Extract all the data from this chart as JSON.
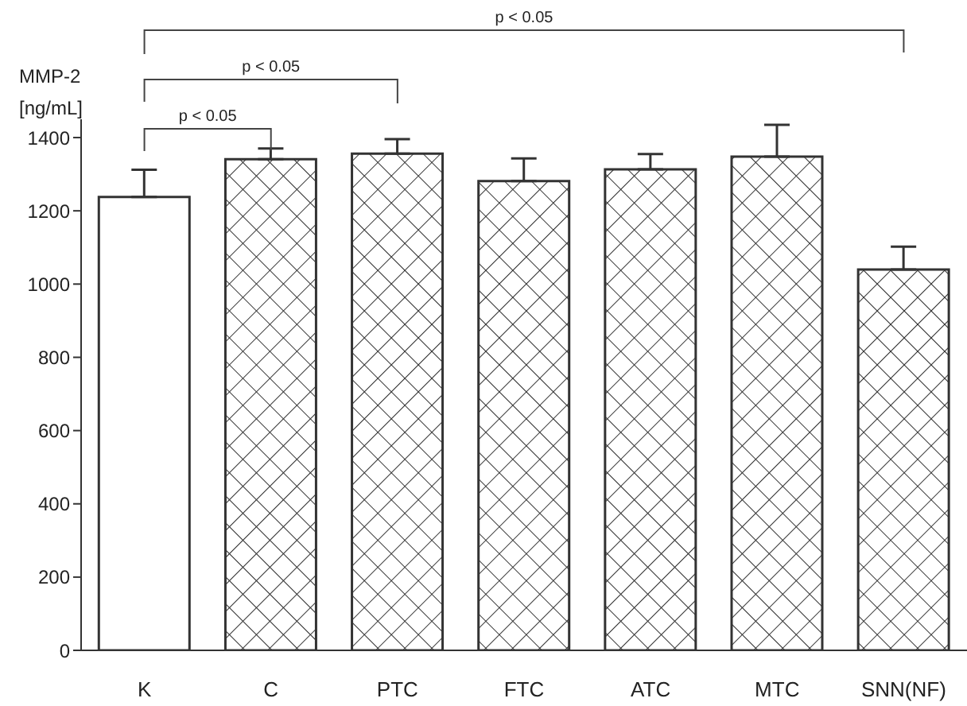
{
  "chart_data": {
    "type": "bar",
    "ylabel": "MMP-2 [ng/mL]",
    "categories": [
      "K",
      "C",
      "PTC",
      "FTC",
      "ATC",
      "MTC",
      "SNN(NF)"
    ],
    "values": [
      1238,
      1341,
      1356,
      1281,
      1313,
      1348,
      1040
    ],
    "errors": [
      [
        1238,
        1312
      ],
      [
        1341,
        1370
      ],
      [
        1356,
        1396
      ],
      [
        1281,
        1343
      ],
      [
        1313,
        1355
      ],
      [
        1348,
        1435
      ],
      [
        1040,
        1102
      ]
    ],
    "colors": [
      "#ffffff",
      "#333333",
      "#333333",
      "#333333",
      "#333333",
      "#333333",
      "#333333"
    ],
    "ylim": [
      0,
      1450
    ],
    "yticks": [
      0,
      200,
      400,
      600,
      800,
      1000,
      1200,
      1400
    ],
    "annotations": [
      "p < 0.05",
      "p < 0.05",
      "p < 0.05"
    ],
    "grid": false,
    "legend": false
  }
}
